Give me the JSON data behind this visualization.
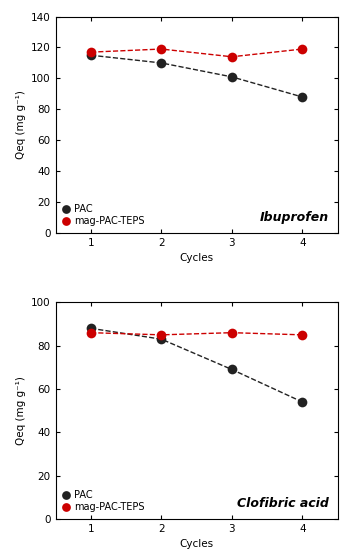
{
  "top": {
    "title": "Ibuprofen",
    "cycles": [
      1,
      2,
      3,
      4
    ],
    "pac_values": [
      115,
      110,
      101,
      88
    ],
    "mag_values": [
      117,
      119,
      114,
      119
    ],
    "ylim": [
      0,
      140
    ],
    "yticks": [
      0,
      20,
      40,
      60,
      80,
      100,
      120,
      140
    ],
    "ylabel": "Qeq (mg g⁻¹)"
  },
  "bottom": {
    "title": "Clofibric acid",
    "cycles": [
      1,
      2,
      3,
      4
    ],
    "pac_values": [
      88,
      83,
      69,
      54
    ],
    "mag_values": [
      86,
      85,
      86,
      85
    ],
    "ylim": [
      0,
      100
    ],
    "yticks": [
      0,
      20,
      40,
      60,
      80,
      100
    ],
    "ylabel": "Qeq (mg g⁻¹)"
  },
  "pac_color": "#222222",
  "mag_color": "#cc0000",
  "pac_label": "PAC",
  "mag_label": "mag-PAC-TEPS",
  "xlabel": "Cycles",
  "marker_size": 7,
  "line_style": "--",
  "line_width": 1.0,
  "title_fontsize": 9,
  "label_fontsize": 7.5,
  "tick_fontsize": 7.5,
  "legend_fontsize": 7
}
